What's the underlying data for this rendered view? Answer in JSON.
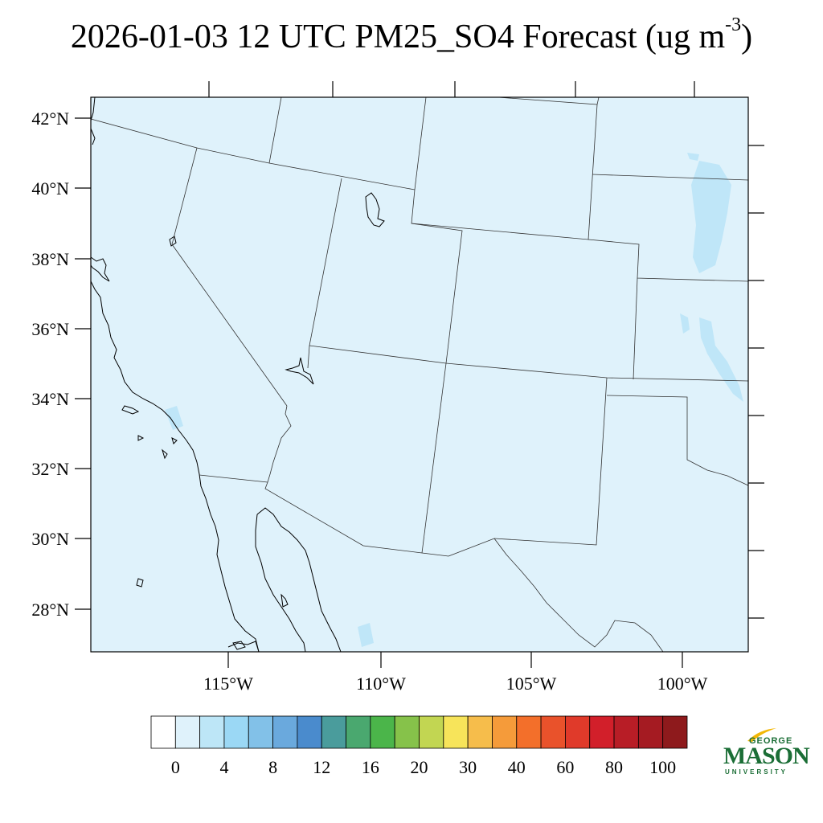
{
  "title": {
    "text": "2026-01-03 12 UTC PM25_SO4 Forecast (ug m",
    "superscript": "-3",
    "close": ")"
  },
  "map": {
    "lat_labels": [
      "42°N",
      "40°N",
      "38°N",
      "36°N",
      "34°N",
      "32°N",
      "30°N",
      "28°N"
    ],
    "lon_labels": [
      "115°W",
      "110°W",
      "105°W",
      "100°W"
    ],
    "background_color": "#dff2fb",
    "land_shade_color": "#bfe6f8"
  },
  "colorbar": {
    "colors": [
      "#ffffff",
      "#dff2fb",
      "#bde6f7",
      "#9bd8f5",
      "#82c1e8",
      "#6aa9dd",
      "#4a8bcd",
      "#4a9c9c",
      "#4aa86f",
      "#4bb54a",
      "#86c24a",
      "#c2d652",
      "#f7e45a",
      "#f6bd4b",
      "#f59b3a",
      "#f36f2a",
      "#e9522b",
      "#e03a2a",
      "#d21f2a",
      "#b81d26",
      "#a51b22",
      "#8e1a1c"
    ],
    "labels": [
      "0",
      "4",
      "8",
      "12",
      "16",
      "20",
      "30",
      "40",
      "60",
      "80",
      "100"
    ]
  },
  "logo": {
    "line1": "GEORGE",
    "line2": "MASON",
    "line3": "UNIVERSITY",
    "color": "#1b6e36"
  }
}
